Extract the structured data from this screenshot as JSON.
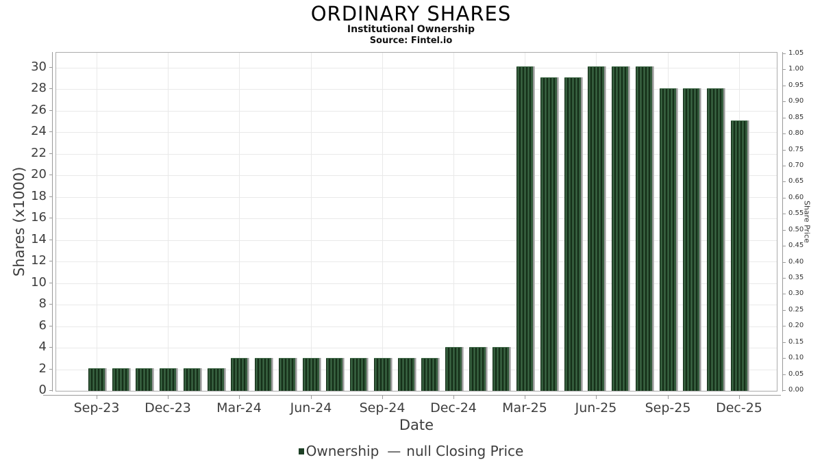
{
  "chart_data": {
    "type": "bar",
    "title": "ORDINARY SHARES",
    "subtitle": "Institutional Ownership",
    "source": "Source: Fintel.io",
    "xlabel": "Date",
    "ylabel_left": "Shares (x1000)",
    "ylabel_right": "Share Price",
    "categories": [
      "Sep-23",
      "Oct-23",
      "Nov-23",
      "Dec-23",
      "Jan-24",
      "Feb-24",
      "Mar-24",
      "Apr-24",
      "May-24",
      "Jun-24",
      "Jul-24",
      "Aug-24",
      "Sep-24",
      "Oct-24",
      "Nov-24",
      "Dec-24",
      "Jan-25",
      "Feb-25",
      "Mar-25",
      "Apr-25",
      "May-25",
      "Jun-25",
      "Jul-25",
      "Aug-25",
      "Sep-25",
      "Oct-25",
      "Nov-25",
      "Dec-25"
    ],
    "values": [
      2,
      2,
      2,
      2,
      2,
      2,
      3,
      3,
      3,
      3,
      3,
      3,
      3,
      3,
      3,
      4,
      4,
      4,
      30,
      29,
      29,
      30,
      30,
      30,
      28,
      28,
      28,
      25
    ],
    "x_tick_labels": [
      "Sep-23",
      "Dec-23",
      "Mar-24",
      "Jun-24",
      "Sep-24",
      "Dec-24",
      "Mar-25",
      "Jun-25",
      "Sep-25",
      "Dec-25"
    ],
    "y_ticks_left": [
      0,
      2,
      4,
      6,
      8,
      10,
      12,
      14,
      16,
      18,
      20,
      22,
      24,
      26,
      28,
      30
    ],
    "y_ticks_right": [
      "0.00",
      "0.05",
      "0.10",
      "0.15",
      "0.20",
      "0.25",
      "0.30",
      "0.35",
      "0.40",
      "0.45",
      "0.50",
      "0.55",
      "0.60",
      "0.65",
      "0.70",
      "0.75",
      "0.80",
      "0.85",
      "0.90",
      "0.95",
      "1.00",
      "1.05"
    ],
    "ylim_left": [
      0,
      31.5
    ],
    "ylim_right": [
      0.0,
      1.05
    ],
    "grid": true,
    "legend_position": "bottom",
    "bar_color": "#1e4026",
    "bar_shadow_color": "#9b9b9b",
    "gridline_color": "#e9e9e9",
    "legend": {
      "ownership_label": "Ownership",
      "price_dash": "—",
      "price_label": "null Closing Price"
    }
  }
}
